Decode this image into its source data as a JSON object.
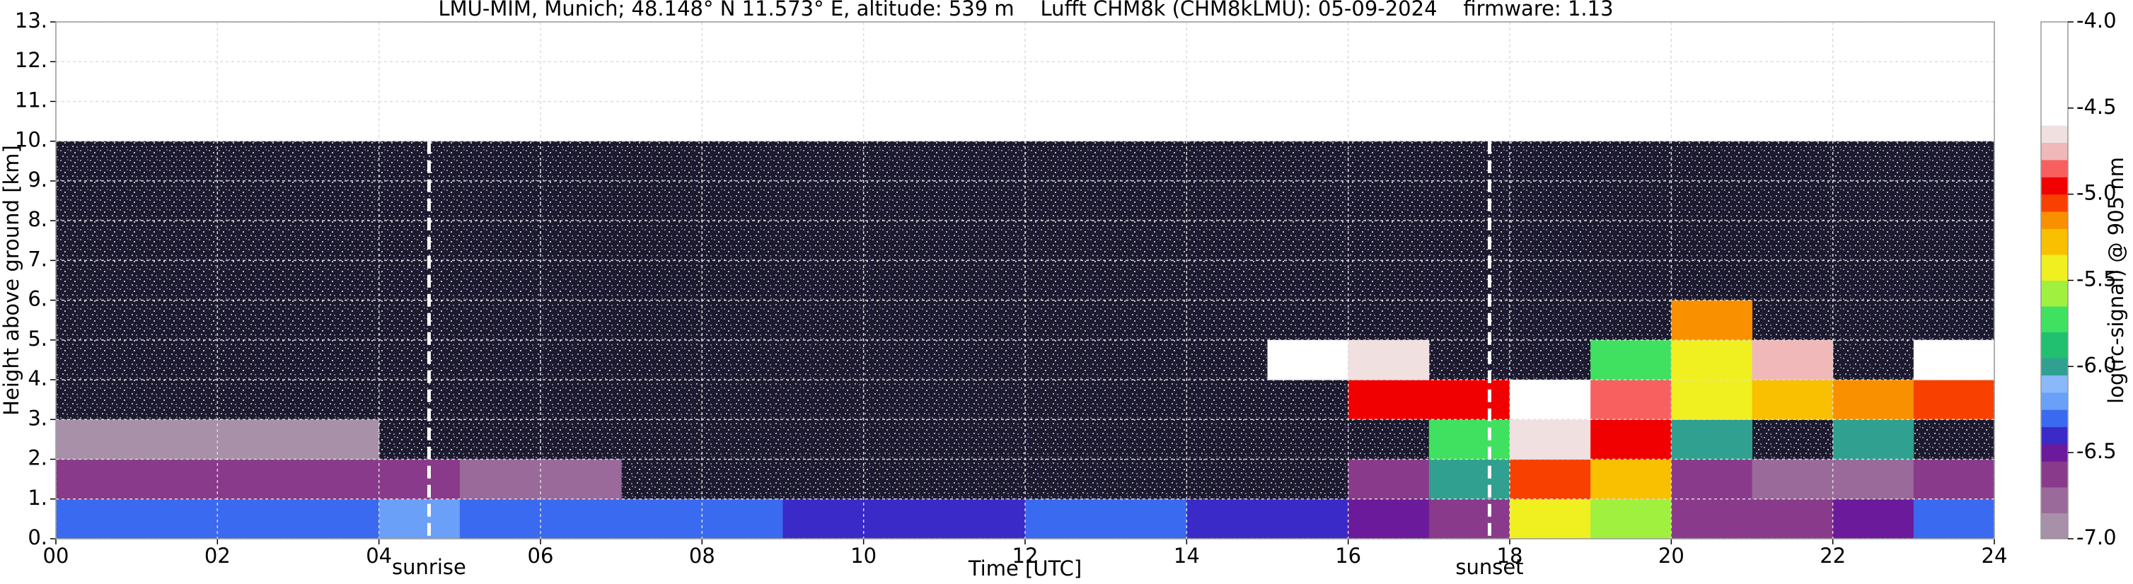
{
  "chart_data": {
    "type": "heatmap",
    "title": "LMU-MIM, Munich; 48.148° N 11.573° E, altitude: 539 m    Lufft CHM8k (CHM8kLMU): 05-09-2024    firmware: 1.13",
    "xlabel": "Time [UTC]",
    "ylabel": "Height above ground [km]",
    "xlim": [
      0,
      24
    ],
    "xticks": [
      {
        "value": 0,
        "label": "00"
      },
      {
        "value": 2,
        "label": "02"
      },
      {
        "value": 4,
        "label": "04"
      },
      {
        "value": 6,
        "label": "06"
      },
      {
        "value": 8,
        "label": "08"
      },
      10,
      12,
      14,
      16,
      18,
      20,
      22,
      24
    ],
    "ylim": [
      0,
      13
    ],
    "yticks": [
      {
        "value": 0,
        "label": "0."
      },
      {
        "value": 1,
        "label": "1."
      },
      {
        "value": 2,
        "label": "2."
      },
      {
        "value": 3,
        "label": "3."
      },
      {
        "value": 4,
        "label": "4."
      },
      {
        "value": 5,
        "label": "5."
      },
      {
        "value": 6,
        "label": "6."
      },
      {
        "value": 7,
        "label": "7."
      },
      {
        "value": 8,
        "label": "8."
      },
      {
        "value": 9,
        "label": "9."
      },
      {
        "value": 10,
        "label": "10."
      },
      {
        "value": 11,
        "label": "11."
      },
      {
        "value": 12,
        "label": "12."
      },
      {
        "value": 13,
        "label": "13."
      }
    ],
    "grid": true,
    "x_bins": [
      0,
      1,
      2,
      3,
      4,
      5,
      6,
      7,
      8,
      9,
      10,
      11,
      12,
      13,
      14,
      15,
      16,
      17,
      18,
      19,
      20,
      21,
      22,
      23,
      24
    ],
    "y_bins": [
      0,
      1,
      2,
      3,
      4,
      5,
      6,
      7,
      8,
      9,
      10
    ],
    "z": [
      [
        -6.3,
        -6.3,
        -6.3,
        -6.3,
        -6.2,
        -6.3,
        -6.3,
        -6.3,
        -6.3,
        -6.4,
        -6.4,
        -6.4,
        -6.3,
        -6.3,
        -6.4,
        -6.4,
        -6.5,
        -6.6,
        -5.4,
        -5.6,
        -6.6,
        -6.6,
        -6.5,
        -6.3
      ],
      [
        -6.6,
        -6.6,
        -6.6,
        -6.6,
        -6.7,
        -6.8,
        -6.8,
        null,
        null,
        null,
        null,
        null,
        null,
        null,
        null,
        null,
        -6.7,
        -6.0,
        -5.1,
        -5.3,
        -6.6,
        -6.8,
        -6.8,
        -6.7
      ],
      [
        -6.9,
        -6.9,
        -6.9,
        -6.9,
        null,
        null,
        null,
        null,
        null,
        null,
        null,
        null,
        null,
        null,
        null,
        null,
        null,
        -5.8,
        -4.7,
        -5.0,
        -6.0,
        null,
        -6.0,
        null
      ],
      [
        null,
        null,
        null,
        null,
        null,
        null,
        null,
        null,
        null,
        null,
        null,
        null,
        null,
        null,
        null,
        null,
        -5.0,
        -5.0,
        -4.5,
        -4.9,
        -5.5,
        -5.3,
        -5.2,
        -5.1
      ],
      [
        null,
        null,
        null,
        null,
        null,
        null,
        null,
        null,
        null,
        null,
        null,
        null,
        null,
        null,
        null,
        -4.5,
        -4.7,
        null,
        null,
        -5.8,
        -5.4,
        -4.8,
        null,
        -4.5
      ],
      [
        null,
        null,
        null,
        null,
        null,
        null,
        null,
        null,
        null,
        null,
        null,
        null,
        null,
        null,
        null,
        null,
        null,
        null,
        null,
        null,
        -5.2,
        null,
        null,
        null
      ],
      [
        null,
        null,
        null,
        null,
        null,
        null,
        null,
        null,
        null,
        null,
        null,
        null,
        null,
        null,
        null,
        null,
        null,
        null,
        null,
        null,
        null,
        null,
        null,
        null
      ],
      [
        null,
        null,
        null,
        null,
        null,
        null,
        null,
        null,
        null,
        null,
        null,
        null,
        null,
        null,
        null,
        null,
        null,
        null,
        null,
        null,
        null,
        null,
        null,
        null
      ],
      [
        null,
        null,
        null,
        null,
        null,
        null,
        null,
        null,
        null,
        null,
        null,
        null,
        null,
        null,
        null,
        null,
        null,
        null,
        null,
        null,
        null,
        null,
        null,
        null
      ],
      [
        null,
        null,
        null,
        null,
        null,
        null,
        null,
        null,
        null,
        null,
        null,
        null,
        null,
        null,
        null,
        null,
        null,
        null,
        null,
        null,
        null,
        null,
        null,
        null
      ]
    ],
    "annotations": [
      {
        "text": "sunrise",
        "x": 4.62
      },
      {
        "text": "sunset",
        "x": 17.75
      }
    ],
    "colorbar": {
      "label": "log(rc-signal) @ 905 nm",
      "lim": [
        -7,
        -4
      ],
      "ticks": [
        {
          "value": -7,
          "label": "-7.0"
        },
        -6.5,
        {
          "value": -6,
          "label": "-6.0"
        },
        -5.5,
        {
          "value": -5,
          "label": "-5.0"
        },
        -4.5,
        {
          "value": -4,
          "label": "-4.0"
        }
      ],
      "colors": [
        {
          "value": -7.0,
          "color": "#a890a8"
        },
        {
          "value": -6.85,
          "color": "#9a6a9a"
        },
        {
          "value": -6.7,
          "color": "#8a3a8a"
        },
        {
          "value": -6.55,
          "color": "#6a1a9a"
        },
        {
          "value": -6.45,
          "color": "#3a2ac8"
        },
        {
          "value": -6.35,
          "color": "#3a6af0"
        },
        {
          "value": -6.25,
          "color": "#6aa0f8"
        },
        {
          "value": -6.15,
          "color": "#8ab8f8"
        },
        {
          "value": -6.05,
          "color": "#30a090"
        },
        {
          "value": -5.95,
          "color": "#20c070"
        },
        {
          "value": -5.8,
          "color": "#40e060"
        },
        {
          "value": -5.65,
          "color": "#a0f040"
        },
        {
          "value": -5.5,
          "color": "#f0f020"
        },
        {
          "value": -5.35,
          "color": "#f8c000"
        },
        {
          "value": -5.2,
          "color": "#f89000"
        },
        {
          "value": -5.1,
          "color": "#f84000"
        },
        {
          "value": -5.0,
          "color": "#f00000"
        },
        {
          "value": -4.9,
          "color": "#f86060"
        },
        {
          "value": -4.8,
          "color": "#f0b8b8"
        },
        {
          "value": -4.7,
          "color": "#f0e0e0"
        },
        {
          "value": -4.6,
          "color": "#ffffff"
        }
      ]
    }
  }
}
